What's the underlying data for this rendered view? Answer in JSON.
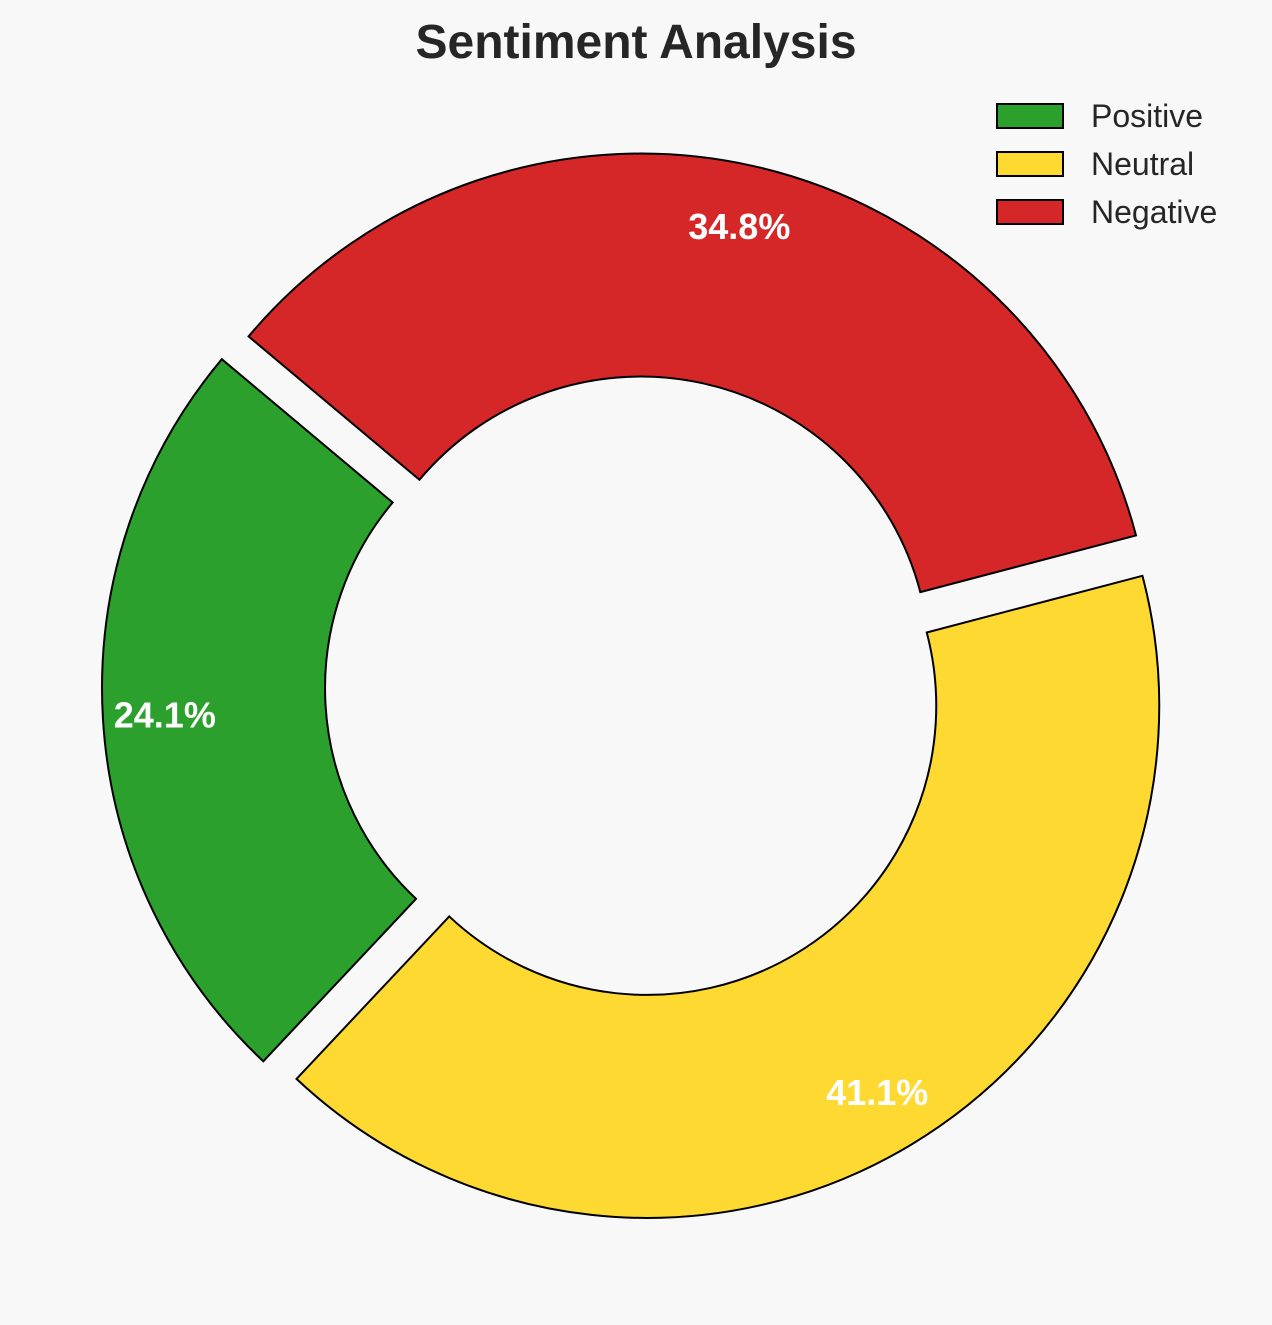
{
  "chart_data": {
    "type": "pie",
    "variant": "donut",
    "title": "Sentiment Analysis",
    "categories": [
      "Positive",
      "Neutral",
      "Negative"
    ],
    "values": [
      24.1,
      41.1,
      34.8
    ],
    "value_labels": [
      "24.1%",
      "41.1%",
      "34.8%"
    ],
    "colors": [
      "#2ca02c",
      "#fdd931",
      "#d62728"
    ],
    "legend": {
      "placement": "top-right",
      "entries": [
        "Positive",
        "Neutral",
        "Negative"
      ]
    }
  }
}
